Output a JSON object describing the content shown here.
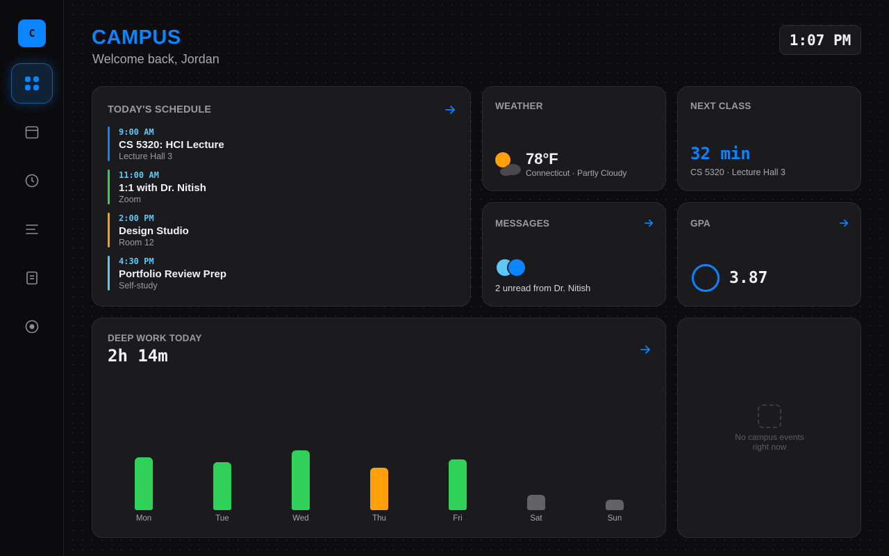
{
  "sidebar": {
    "logo_letter": "C",
    "items": [
      {
        "name": "dashboard",
        "icon": "grid-icon",
        "active": true
      },
      {
        "name": "calendar",
        "icon": "calendar-icon",
        "active": false
      },
      {
        "name": "timer",
        "icon": "clock-icon",
        "active": false
      },
      {
        "name": "tasks",
        "icon": "list-icon",
        "active": false
      },
      {
        "name": "notes",
        "icon": "document-icon",
        "active": false
      },
      {
        "name": "focus",
        "icon": "target-icon",
        "active": false
      }
    ]
  },
  "header": {
    "title": "CAMPUS",
    "welcome": "Welcome back, Jordan",
    "time": "1:07 PM"
  },
  "schedule": {
    "title": "TODAY'S SCHEDULE",
    "items": [
      {
        "time": "9:00 AM",
        "title": "CS 5320: HCI Lecture",
        "location": "Lecture Hall 3",
        "color": "#0a84ff"
      },
      {
        "time": "11:00 AM",
        "title": "1:1 with Dr. Nitish",
        "location": "Zoom",
        "color": "#30d158"
      },
      {
        "time": "2:00 PM",
        "title": "Design Studio",
        "location": "Room 12",
        "color": "#ff9f0a"
      },
      {
        "time": "4:30 PM",
        "title": "Portfolio Review Prep",
        "location": "Self-study",
        "color": "#5ac8fa"
      }
    ]
  },
  "weather": {
    "title": "WEATHER",
    "temp": "78°F",
    "desc": "Connecticut · Partly Cloudy",
    "icon": "partly-cloudy-icon"
  },
  "next_class": {
    "title": "NEXT CLASS",
    "countdown": "32 min",
    "desc": "CS 5320 · Lecture Hall 3"
  },
  "messages": {
    "title": "MESSAGES",
    "text": "2 unread from Dr. Nitish"
  },
  "gpa": {
    "title": "GPA",
    "value": "3.87"
  },
  "deep_work": {
    "title": "DEEP WORK TODAY",
    "total": "2h 14m"
  },
  "events": {
    "empty_line1": "No campus events",
    "empty_line2": "right now"
  },
  "colors": {
    "accent": "#0a84ff",
    "green": "#30d158",
    "orange": "#ff9f0a",
    "teal": "#5ac8fa",
    "muted_bar": "#636366"
  },
  "chart_data": {
    "type": "bar",
    "categories": [
      "Mon",
      "Tue",
      "Wed",
      "Thu",
      "Fri",
      "Sat",
      "Sun"
    ],
    "values": [
      76,
      69,
      86,
      61,
      73,
      22,
      15
    ],
    "colors": [
      "#30d158",
      "#30d158",
      "#30d158",
      "#ff9f0a",
      "#30d158",
      "#636366",
      "#636366"
    ],
    "ylim": [
      0,
      100
    ]
  }
}
